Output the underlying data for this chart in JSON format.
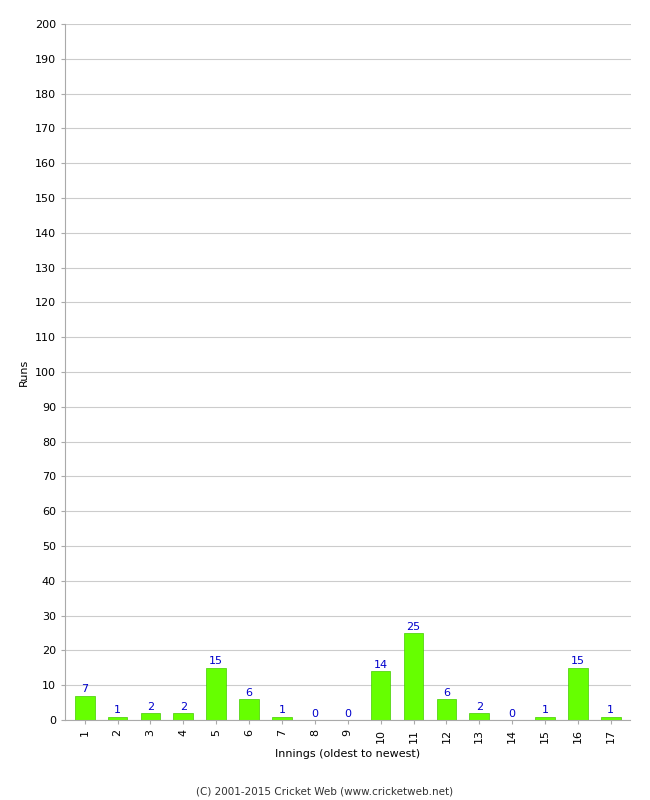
{
  "xlabel": "Innings (oldest to newest)",
  "ylabel": "Runs",
  "categories": [
    "1",
    "2",
    "3",
    "4",
    "5",
    "6",
    "7",
    "8",
    "9",
    "10",
    "11",
    "12",
    "13",
    "14",
    "15",
    "16",
    "17"
  ],
  "values": [
    7,
    1,
    2,
    2,
    15,
    6,
    1,
    0,
    0,
    14,
    25,
    6,
    2,
    0,
    1,
    15,
    1
  ],
  "bar_color": "#66ff00",
  "bar_edge_color": "#44cc00",
  "label_color": "#0000cc",
  "ylim": [
    0,
    200
  ],
  "yticks": [
    0,
    10,
    20,
    30,
    40,
    50,
    60,
    70,
    80,
    90,
    100,
    110,
    120,
    130,
    140,
    150,
    160,
    170,
    180,
    190,
    200
  ],
  "background_color": "#ffffff",
  "grid_color": "#cccccc",
  "footer_text": "(C) 2001-2015 Cricket Web (www.cricketweb.net)",
  "label_fontsize": 8,
  "axis_label_fontsize": 8,
  "tick_fontsize": 8,
  "footer_fontsize": 7.5
}
